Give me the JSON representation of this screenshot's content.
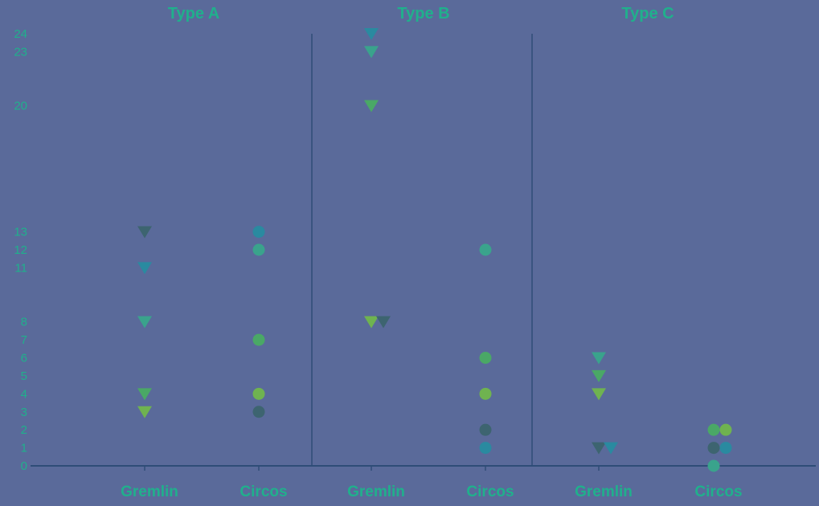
{
  "chart_data": {
    "type": "scatter",
    "title": "",
    "xlabel": "",
    "ylabel": "",
    "ylim": [
      0,
      24
    ],
    "y_ticks": [
      0,
      1,
      2,
      3,
      4,
      5,
      6,
      7,
      8,
      11,
      12,
      13,
      20,
      23,
      24
    ],
    "grid": false,
    "markers": {
      "Gremlin": "triangle-down",
      "Circos": "circle"
    },
    "panels": [
      {
        "title": "Type A",
        "categories": [
          "Gremlin",
          "Circos"
        ],
        "points": [
          {
            "category": "Gremlin",
            "values": [
              13,
              11,
              8,
              4,
              3
            ]
          },
          {
            "category": "Circos",
            "values": [
              13,
              12,
              7,
              4,
              3
            ]
          }
        ]
      },
      {
        "title": "Type B",
        "categories": [
          "Gremlin",
          "Circos"
        ],
        "points": [
          {
            "category": "Gremlin",
            "values": [
              24,
              23,
              20,
              8,
              8
            ]
          },
          {
            "category": "Circos",
            "values": [
              12,
              6,
              4,
              2,
              1
            ]
          }
        ]
      },
      {
        "title": "Type C",
        "categories": [
          "Gremlin",
          "Circos"
        ],
        "points": [
          {
            "category": "Gremlin",
            "values": [
              6,
              5,
              4,
              1,
              1
            ]
          },
          {
            "category": "Circos",
            "values": [
              2,
              2,
              1,
              1,
              0
            ]
          }
        ]
      }
    ],
    "colors": {
      "background": "#5a6a9a",
      "text": "#20b08c",
      "axis": "#2f4d78",
      "marker_palette": [
        "#3d6470",
        "#2a8aa0",
        "#3aa38c",
        "#4aa866",
        "#6fb350"
      ]
    }
  }
}
